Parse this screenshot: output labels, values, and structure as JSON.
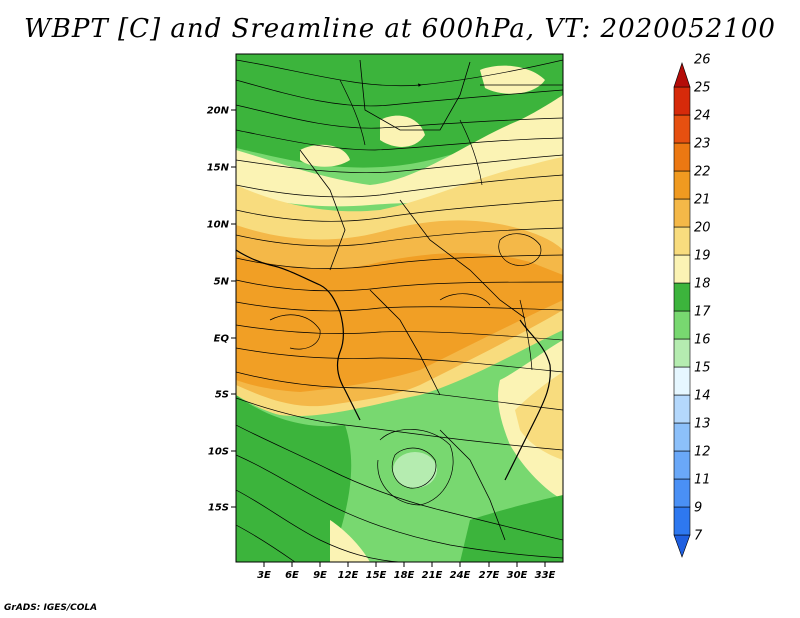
{
  "title": "WBPT [C] and Sreamline at 600hPa, VT: 2020052100",
  "credit": "GrADS: IGES/COLA",
  "map": {
    "variable": "WBPT",
    "units": "C",
    "level": "600hPa",
    "valid_time": "2020052100",
    "lon_ticks": [
      "3E",
      "6E",
      "9E",
      "12E",
      "15E",
      "18E",
      "21E",
      "24E",
      "27E",
      "30E",
      "33E"
    ],
    "lat_ticks": [
      "20N",
      "15N",
      "10N",
      "5N",
      "EQ",
      "5S",
      "10S",
      "15S"
    ]
  },
  "colorbar": {
    "labels": [
      "7",
      "9",
      "11",
      "12",
      "13",
      "14",
      "15",
      "16",
      "17",
      "18",
      "19",
      "20",
      "21",
      "22",
      "23",
      "24",
      "25",
      "26"
    ],
    "colors": [
      "#1f5fe0",
      "#2e78f0",
      "#4a90f5",
      "#6aa8f8",
      "#8cc0fa",
      "#b4d8fc",
      "#e6f7ff",
      "#b5ecb0",
      "#78d870",
      "#3cb43c",
      "#fbf3b4",
      "#f8dc7e",
      "#f4b848",
      "#f09a20",
      "#ec7812",
      "#e65010",
      "#d62a0a",
      "#b40c08"
    ]
  }
}
